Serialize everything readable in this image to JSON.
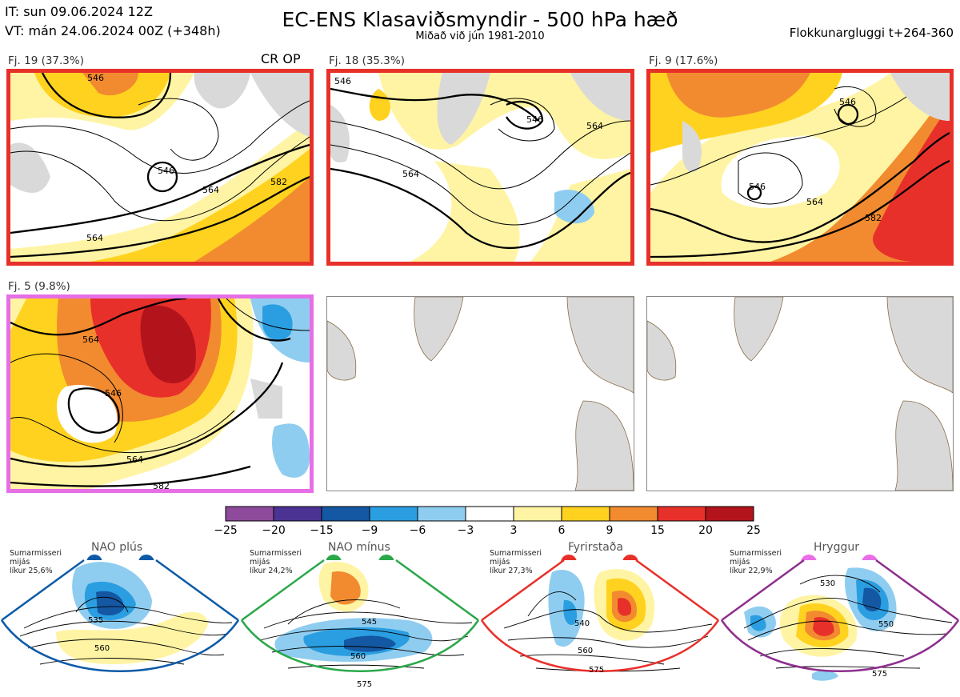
{
  "header": {
    "issue_time": "IT: sun 09.06.2024 12Z",
    "valid_time": "VT: mán 24.06.2024 00Z  (+348h)",
    "title": "EC-ENS Klasaviðsmyndir - 500 hPa hæð",
    "subtitle": "Miðað við jún 1981-2010",
    "window": "Flokkunargluggi t+264-360"
  },
  "clusters": [
    {
      "label": "Fj. 19 (37.3%)",
      "tag": "CR OP",
      "border_color": "#e8302a",
      "contours": [
        "546",
        "564",
        "582",
        "546",
        "564"
      ]
    },
    {
      "label": "Fj. 18 (35.3%)",
      "tag": "",
      "border_color": "#e8302a",
      "contours": [
        "546",
        "564",
        "546",
        "564"
      ]
    },
    {
      "label": "Fj. 9 (17.6%)",
      "tag": "",
      "border_color": "#e8302a",
      "contours": [
        "546",
        "546",
        "564",
        "582"
      ]
    },
    {
      "label": "Fj. 5 (9.8%)",
      "tag": "",
      "border_color": "#e66ee6",
      "contours": [
        "564",
        "546",
        "564",
        "582"
      ]
    }
  ],
  "colorbar": {
    "ticks": [
      "−25",
      "−20",
      "−15",
      "−9",
      "−6",
      "−3",
      "3",
      "6",
      "9",
      "15",
      "20",
      "25"
    ],
    "colors": [
      "#8e4a9b",
      "#4b3394",
      "#1457a3",
      "#2a9ee0",
      "#8fcdf0",
      "#ffffff",
      "#fff4a3",
      "#ffd21f",
      "#f28b30",
      "#e8302a",
      "#b3141c"
    ]
  },
  "regimes": [
    {
      "title": "NAO plús",
      "note": [
        "Sumarmisseri",
        "mijás",
        "líkur 25,6%"
      ],
      "color": "#0d5aa7",
      "dots": [
        "#0d5aa7",
        "#0d5aa7"
      ],
      "contours": [
        "535",
        "560"
      ]
    },
    {
      "title": "NAO mínus",
      "note": [
        "Sumarmisseri",
        "mijás",
        "líkur 24,2%"
      ],
      "color": "#2aa84a",
      "dots": [
        "#2aa84a",
        "#2aa84a"
      ],
      "contours": [
        "545",
        "560",
        "575"
      ]
    },
    {
      "title": "Fyrirstaða",
      "note": [
        "Sumarmisseri",
        "mijás",
        "líkur 27,3%"
      ],
      "color": "#e8302a",
      "dots": [
        "#e8302a",
        "#e8302a"
      ],
      "contours": [
        "540",
        "560",
        "575"
      ]
    },
    {
      "title": "Hryggur",
      "note": [
        "Sumarmisseri",
        "mijás",
        "líkur 22,9%"
      ],
      "color": "#8e2f8e",
      "dots": [
        "#ea6ee8",
        "#ea6ee8"
      ],
      "contours": [
        "530",
        "550",
        "575"
      ]
    }
  ]
}
